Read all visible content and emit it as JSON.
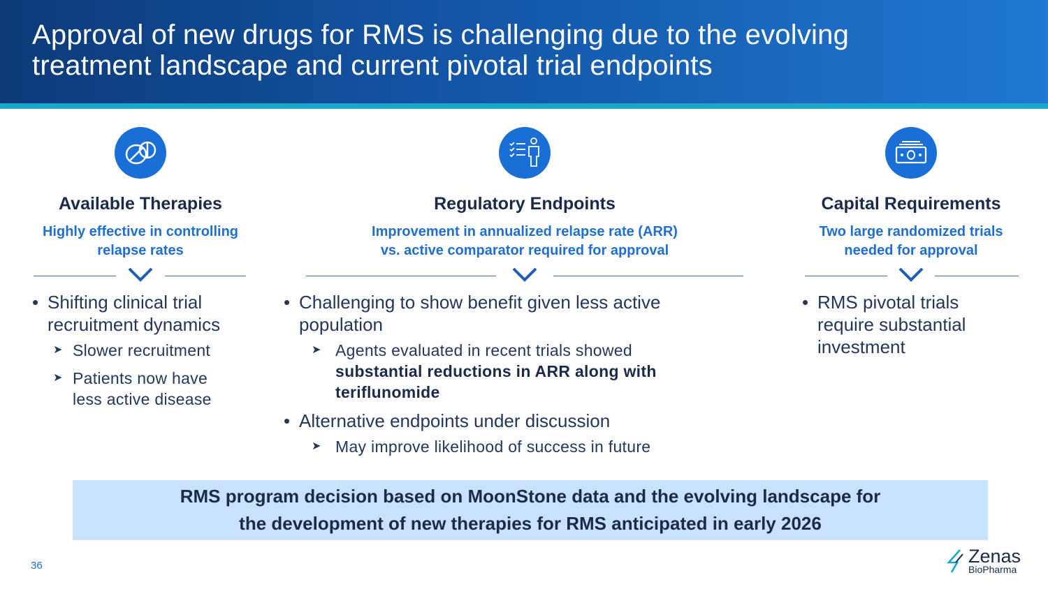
{
  "title_line1": "Approval of new drugs for RMS is challenging due to the evolving",
  "title_line2": "treatment landscape and current pivotal trial endpoints",
  "columns": [
    {
      "icon": "pills-icon",
      "title": "Available Therapies",
      "subtitle_line1": "Highly effective in controlling",
      "subtitle_line2": "relapse rates",
      "bullet1_line1": "Shifting clinical trial",
      "bullet1_line2": "recruitment dynamics",
      "sub1": "Slower recruitment",
      "sub2_line1": "Patients now have",
      "sub2_line2": "less active disease"
    },
    {
      "icon": "checklist-person-icon",
      "title": "Regulatory Endpoints",
      "subtitle_line1": "Improvement in annualized relapse rate (ARR)",
      "subtitle_line2": "vs. active comparator required for approval",
      "bullet1_line1": "Challenging to show benefit given less active",
      "bullet1_line2": "population",
      "sub1_plain": "Agents evaluated in recent trials showed",
      "sub1_bold_line1": "substantial reductions in ARR along with",
      "sub1_bold_line2": "teriflunomide",
      "bullet2": "Alternative endpoints under discussion",
      "sub2": "May improve likelihood of success in future"
    },
    {
      "icon": "money-icon",
      "title": "Capital Requirements",
      "subtitle_line1": "Two large randomized trials",
      "subtitle_line2": "needed for approval",
      "bullet1_line1": "RMS pivotal trials",
      "bullet1_line2": "require substantial",
      "bullet1_line3": "investment"
    }
  ],
  "banner_line1": "RMS program decision based on MoonStone data and the evolving landscape for",
  "banner_line2": "the development of new therapies for RMS anticipated in early 2026",
  "page_number": "36",
  "logo_name": "Zenas",
  "logo_sub": "BioPharma",
  "colors": {
    "header_dark": "#0c3a78",
    "header_light": "#1f78d1",
    "accent_blue": "#1e6fd0",
    "banner_bg": "#c9e2fb",
    "stripe": "#1aa6c9"
  }
}
